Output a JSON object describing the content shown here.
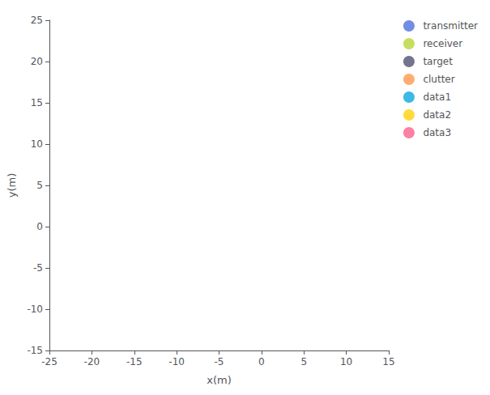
{
  "chart_data": {
    "type": "scatter",
    "xlabel": "x(m)",
    "ylabel": "y(m)",
    "xlim": [
      -25,
      15
    ],
    "ylim": [
      -15,
      25
    ],
    "xticks": [
      -25,
      -20,
      -15,
      -10,
      -5,
      0,
      5,
      10,
      15
    ],
    "yticks": [
      -15,
      -10,
      -5,
      0,
      5,
      10,
      15,
      20,
      25
    ],
    "series": [
      {
        "name": "transmitter",
        "values": []
      },
      {
        "name": "receiver",
        "values": []
      },
      {
        "name": "target",
        "values": []
      },
      {
        "name": "clutter",
        "values": []
      },
      {
        "name": "data1",
        "values": []
      },
      {
        "name": "data2",
        "values": []
      },
      {
        "name": "data3",
        "values": []
      }
    ],
    "grid": false,
    "legend": "upper right"
  }
}
